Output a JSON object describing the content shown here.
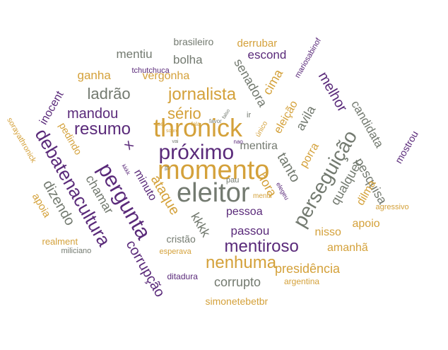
{
  "colors": {
    "purple": "#5a2a7a",
    "gold": "#d4a13a",
    "gray": "#737a70"
  },
  "words": [
    {
      "text": "eleitor",
      "color": "gray"
    },
    {
      "text": "momento",
      "color": "gold"
    },
    {
      "text": "thronick",
      "color": "gold"
    },
    {
      "text": "próximo",
      "color": "purple"
    },
    {
      "text": "pergunta",
      "color": "purple"
    },
    {
      "text": "debatenacultura",
      "color": "purple"
    },
    {
      "text": "perseguição",
      "color": "gray"
    },
    {
      "text": "mentiroso",
      "color": "purple"
    },
    {
      "text": "resumo",
      "color": "purple"
    },
    {
      "text": "jornalista",
      "color": "gold"
    },
    {
      "text": "nenhuma",
      "color": "gold"
    },
    {
      "text": "corrupção",
      "color": "purple"
    },
    {
      "text": "ataque",
      "color": "gold"
    },
    {
      "text": "sério",
      "color": "gold"
    },
    {
      "text": "dizendo",
      "color": "gray"
    },
    {
      "text": "ladrão",
      "color": "gray"
    },
    {
      "text": "mandou",
      "color": "purple"
    },
    {
      "text": "melhor",
      "color": "purple"
    },
    {
      "text": "kkkk",
      "color": "gray"
    },
    {
      "text": "tanto",
      "color": "gray"
    },
    {
      "text": "avila",
      "color": "gray"
    },
    {
      "text": "qualquer",
      "color": "gray"
    },
    {
      "text": "presidência",
      "color": "gold"
    },
    {
      "text": "corrupto",
      "color": "gray"
    },
    {
      "text": "hora",
      "color": "gold"
    },
    {
      "text": "cima",
      "color": "gold"
    },
    {
      "text": "amanhã",
      "color": "gold"
    },
    {
      "text": "pesquisa",
      "color": "gray"
    },
    {
      "text": "candidata",
      "color": "gray"
    },
    {
      "text": "senadora",
      "color": "gray"
    },
    {
      "text": "chamar",
      "color": "gray"
    },
    {
      "text": "apoio",
      "color": "gold"
    },
    {
      "text": "passou",
      "color": "purple"
    },
    {
      "text": "nisso",
      "color": "gold"
    },
    {
      "text": "mentira",
      "color": "gray"
    },
    {
      "text": "bolha",
      "color": "gray"
    },
    {
      "text": "escond",
      "color": "purple"
    },
    {
      "text": "mentiu",
      "color": "gray"
    },
    {
      "text": "ganha",
      "color": "gold"
    },
    {
      "text": "inocent",
      "color": "purple"
    },
    {
      "text": "dilma",
      "color": "gold"
    },
    {
      "text": "porra",
      "color": "gold"
    },
    {
      "text": "eleição",
      "color": "gold"
    },
    {
      "text": "pessoa",
      "color": "purple"
    },
    {
      "text": "x",
      "color": "purple"
    },
    {
      "text": "minuto",
      "color": "purple"
    },
    {
      "text": "mostrou",
      "color": "purple"
    },
    {
      "text": "apoia",
      "color": "gold"
    },
    {
      "text": "vergonha",
      "color": "gold"
    },
    {
      "text": "derrubar",
      "color": "gold"
    },
    {
      "text": "brasileiro",
      "color": "gray"
    },
    {
      "text": "pedindo",
      "color": "gold"
    },
    {
      "text": "simonetebetbr",
      "color": "gold"
    },
    {
      "text": "cristão",
      "color": "gray"
    },
    {
      "text": "realment",
      "color": "gold"
    },
    {
      "text": "ditadura",
      "color": "purple"
    },
    {
      "text": "argentina",
      "color": "gold"
    },
    {
      "text": "esperava",
      "color": "gold"
    },
    {
      "text": "miliciano",
      "color": "gray"
    },
    {
      "text": "agressivo",
      "color": "gold"
    },
    {
      "text": "sorayathronick",
      "color": "gold"
    },
    {
      "text": "mariosabinof",
      "color": "purple"
    },
    {
      "text": "tchutchuca",
      "color": "purple"
    },
    {
      "text": "pau",
      "color": "gray"
    },
    {
      "text": "ir",
      "color": "gray"
    },
    {
      "text": "único",
      "color": "gold"
    },
    {
      "text": "mentir",
      "color": "gold"
    },
    {
      "text": "elegeu",
      "color": "purple"
    },
    {
      "text": "favor",
      "color": "gray"
    },
    {
      "text": "nao",
      "color": "purple"
    },
    {
      "text": "sei",
      "color": "gold"
    },
    {
      "text": "kkkk",
      "color": "purple"
    },
    {
      "text": "falso",
      "color": "gray"
    },
    {
      "text": "fala",
      "color": "gold"
    },
    {
      "text": "lá",
      "color": "gray"
    },
    {
      "text": "sobre",
      "color": "gold"
    },
    {
      "text": "vai",
      "color": "gray"
    }
  ]
}
